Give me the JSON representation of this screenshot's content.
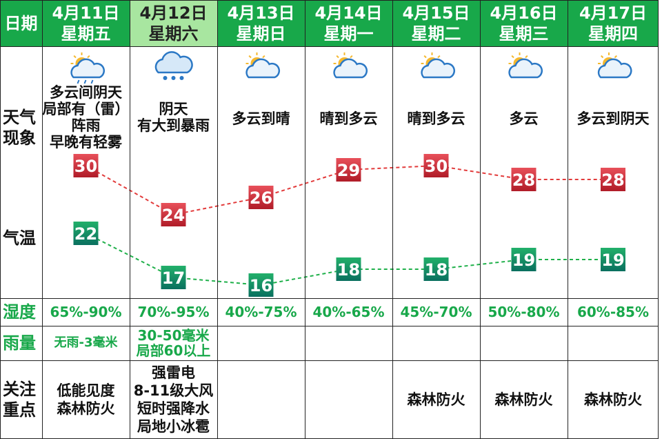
{
  "header": {
    "date_label": "日期",
    "days": [
      {
        "date": "4月11日",
        "weekday": "星期五"
      },
      {
        "date": "4月12日",
        "weekday": "星期六"
      },
      {
        "date": "4月13日",
        "weekday": "星期日"
      },
      {
        "date": "4月14日",
        "weekday": "星期一"
      },
      {
        "date": "4月15日",
        "weekday": "星期二"
      },
      {
        "date": "4月16日",
        "weekday": "星期三"
      },
      {
        "date": "4月17日",
        "weekday": "星期四"
      }
    ]
  },
  "labels": {
    "weather_1": "天气",
    "weather_2": "现象",
    "temp": "气温",
    "humidity": "湿度",
    "rain": "雨量",
    "focus_1": "关注",
    "focus_2": "重点"
  },
  "weather": [
    {
      "icon": "partly-cloudy-rain-icon",
      "lines": [
        "多云间阴天",
        "局部有（雷）",
        "阵雨",
        "早晚有轻雾"
      ]
    },
    {
      "icon": "rain-cloud-icon",
      "lines": [
        "阴天",
        "有大到暴雨"
      ]
    },
    {
      "icon": "partly-cloudy-icon",
      "lines": [
        "多云到晴"
      ]
    },
    {
      "icon": "partly-cloudy-icon",
      "lines": [
        "晴到多云"
      ]
    },
    {
      "icon": "partly-cloudy-icon",
      "lines": [
        "晴到多云"
      ]
    },
    {
      "icon": "partly-cloudy-icon",
      "lines": [
        "多云"
      ]
    },
    {
      "icon": "partly-cloudy-icon",
      "lines": [
        "多云到阴天"
      ]
    }
  ],
  "chart_data": {
    "type": "line",
    "categories": [
      "4月11日",
      "4月12日",
      "4月13日",
      "4月14日",
      "4月15日",
      "4月16日",
      "4月17日"
    ],
    "series": [
      {
        "values": [
          30,
          24,
          26,
          29,
          30,
          28,
          28
        ],
        "color": "#e23b3b",
        "box_top": "#e8505a",
        "box_bottom": "#b01c28"
      },
      {
        "values": [
          22,
          17,
          16,
          18,
          18,
          19,
          19
        ],
        "color": "#1fb04a",
        "box_top": "#22b06a",
        "box_bottom": "#0a6f5f"
      }
    ]
  },
  "humidity": [
    "65%-90%",
    "70%-95%",
    "40%-75%",
    "40%-65%",
    "45%-70%",
    "50%-80%",
    "60%-85%"
  ],
  "rain": [
    [
      "无雨-3毫米"
    ],
    [
      "30-50毫米",
      "局部60以上"
    ],
    [],
    [],
    [],
    [],
    []
  ],
  "focus": [
    [
      "低能见度",
      "森林防火"
    ],
    [
      "强雷电",
      "8-11级大风",
      "短时强降水",
      "局地小冰雹"
    ],
    [],
    [],
    [
      "森林防火"
    ],
    [
      "森林防火"
    ],
    [
      "森林防火"
    ]
  ],
  "colors": {
    "header_green": "#18a84a",
    "header_selected": "#a8e6a0",
    "text_green": "#18a84a"
  }
}
